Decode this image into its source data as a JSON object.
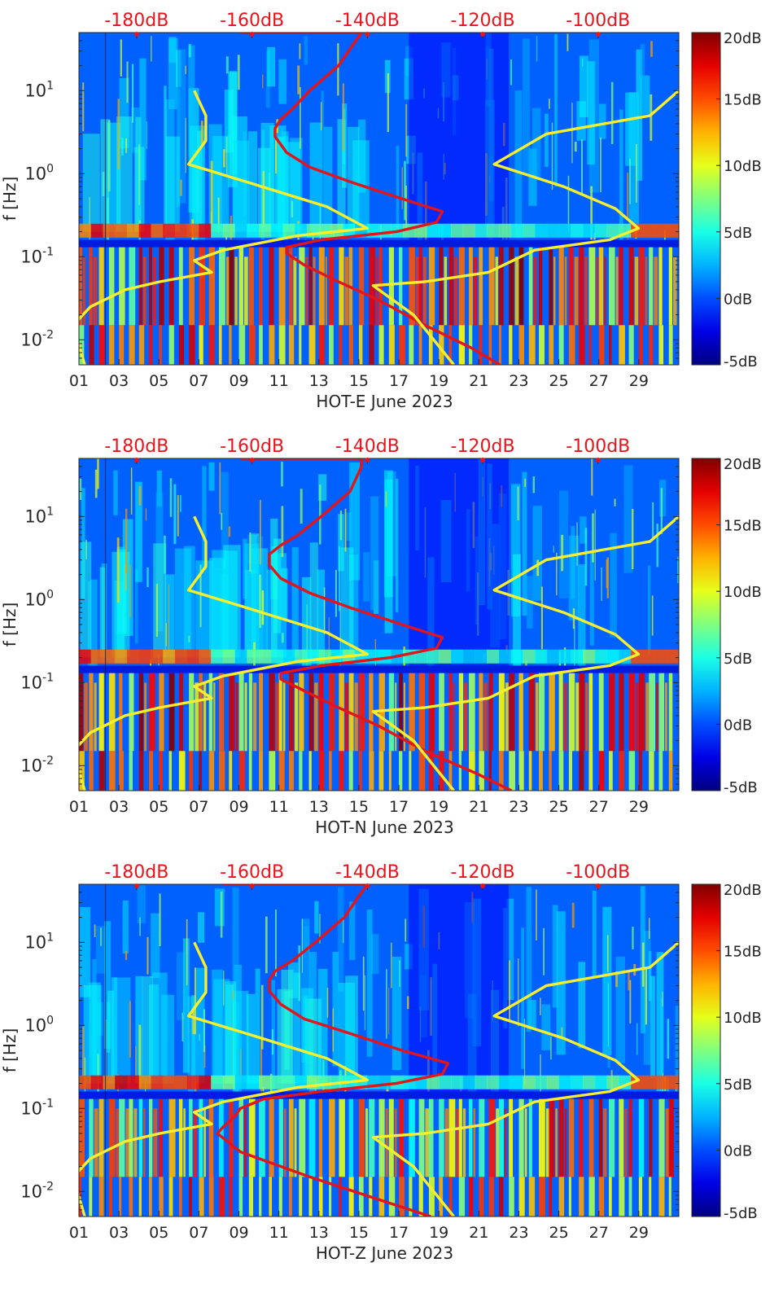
{
  "colors": {
    "top_axis_label": "#e8141c",
    "red_curve": "#e3141a",
    "yellow_curve": "#f7ef2d",
    "colormap": "jet"
  },
  "chart_data": [
    {
      "type": "heatmap",
      "title": "",
      "xlabel": "HOT-E June 2023",
      "ylabel": "f [Hz]",
      "x_ticks": [
        "01",
        "03",
        "05",
        "07",
        "09",
        "11",
        "13",
        "15",
        "17",
        "19",
        "21",
        "23",
        "25",
        "27",
        "29"
      ],
      "y_ticks": [
        {
          "value": 0.01,
          "base": "10",
          "exp": "-2"
        },
        {
          "value": 0.1,
          "base": "10",
          "exp": "-1"
        },
        {
          "value": 1,
          "base": "10",
          "exp": "0"
        },
        {
          "value": 10,
          "base": "10",
          "exp": "1"
        }
      ],
      "y_scale": "log",
      "ylim": [
        0.005,
        50
      ],
      "xlim": [
        1,
        31
      ],
      "top_axis_ticks": [
        "-180dB",
        "-160dB",
        "-140dB",
        "-120dB",
        "-100dB"
      ],
      "top_axis_range": [
        -190,
        -86
      ],
      "colorbar": {
        "ticks": [
          "20dB",
          "15dB",
          "10dB",
          "5dB",
          "0dB",
          "-5dB"
        ],
        "range": [
          -5,
          20
        ],
        "colormap": "jet"
      },
      "series": [
        {
          "color": "#e3141a",
          "points": [
            [
              -162,
              50
            ],
            [
              -150,
              50
            ],
            [
              -141,
              50
            ],
            [
              -142,
              40
            ],
            [
              -145,
              20
            ],
            [
              -150,
              10
            ],
            [
              -153,
              6
            ],
            [
              -155,
              4.5
            ],
            [
              -156,
              3.5
            ],
            [
              -156,
              2.8
            ],
            [
              -154,
              1.8
            ],
            [
              -150,
              1.2
            ],
            [
              -143,
              0.8
            ],
            [
              -134,
              0.5
            ],
            [
              -127,
              0.35
            ],
            [
              -128,
              0.26
            ],
            [
              -135,
              0.2
            ],
            [
              -148,
              0.16
            ],
            [
              -154,
              0.13
            ],
            [
              -154,
              0.11
            ],
            [
              -151,
              0.08
            ],
            [
              -145,
              0.05
            ],
            [
              -138,
              0.03
            ],
            [
              -130,
              0.015
            ],
            [
              -122,
              0.008
            ],
            [
              -117,
              0.005
            ]
          ]
        },
        {
          "color": "#f7ef2d",
          "points": [
            [
              -170,
              10
            ],
            [
              -168,
              5
            ],
            [
              -168,
              2.5
            ],
            [
              -171,
              1.3
            ],
            [
              -161,
              0.8
            ],
            [
              -147,
              0.4
            ],
            [
              -140,
              0.22
            ],
            [
              -152,
              0.18
            ],
            [
              -165,
              0.12
            ],
            [
              -170,
              0.09
            ],
            [
              -167,
              0.065
            ],
            [
              -176,
              0.05
            ],
            [
              -182,
              0.04
            ],
            [
              -188,
              0.025
            ],
            [
              -191,
              0.015
            ],
            [
              -189,
              0.005
            ]
          ]
        },
        {
          "color": "#f7ef2d",
          "points": [
            [
              -86,
              10
            ],
            [
              -91,
              5
            ],
            [
              -109,
              3
            ],
            [
              -118,
              1.3
            ],
            [
              -106,
              0.7
            ],
            [
              -97,
              0.38
            ],
            [
              -93,
              0.22
            ],
            [
              -98,
              0.16
            ],
            [
              -111,
              0.12
            ],
            [
              -119,
              0.065
            ],
            [
              -130,
              0.05
            ],
            [
              -139,
              0.045
            ],
            [
              -132,
              0.02
            ],
            [
              -125,
              0.005
            ]
          ]
        }
      ]
    },
    {
      "type": "heatmap",
      "title": "",
      "xlabel": "HOT-N June 2023",
      "ylabel": "f [Hz]",
      "x_ticks": [
        "01",
        "03",
        "05",
        "07",
        "09",
        "11",
        "13",
        "15",
        "17",
        "19",
        "21",
        "23",
        "25",
        "27",
        "29"
      ],
      "y_ticks": [
        {
          "value": 0.01,
          "base": "10",
          "exp": "-2"
        },
        {
          "value": 0.1,
          "base": "10",
          "exp": "-1"
        },
        {
          "value": 1,
          "base": "10",
          "exp": "0"
        },
        {
          "value": 10,
          "base": "10",
          "exp": "1"
        }
      ],
      "y_scale": "log",
      "ylim": [
        0.005,
        50
      ],
      "xlim": [
        1,
        31
      ],
      "top_axis_ticks": [
        "-180dB",
        "-160dB",
        "-140dB",
        "-120dB",
        "-100dB"
      ],
      "top_axis_range": [
        -190,
        -86
      ],
      "colorbar": {
        "ticks": [
          "20dB",
          "15dB",
          "10dB",
          "5dB",
          "0dB",
          "-5dB"
        ],
        "range": [
          -5,
          20
        ],
        "colormap": "jet"
      },
      "series": [
        {
          "color": "#e3141a",
          "points": [
            [
              -162,
              50
            ],
            [
              -150,
              50
            ],
            [
              -141,
              50
            ],
            [
              -141,
              40
            ],
            [
              -143,
              20
            ],
            [
              -148,
              10
            ],
            [
              -152,
              6
            ],
            [
              -155,
              4.5
            ],
            [
              -157,
              3.5
            ],
            [
              -157,
              2.6
            ],
            [
              -155,
              1.8
            ],
            [
              -150,
              1.2
            ],
            [
              -143,
              0.8
            ],
            [
              -134,
              0.5
            ],
            [
              -127,
              0.35
            ],
            [
              -128,
              0.26
            ],
            [
              -136,
              0.2
            ],
            [
              -148,
              0.16
            ],
            [
              -155,
              0.13
            ],
            [
              -155,
              0.11
            ],
            [
              -151,
              0.08
            ],
            [
              -145,
              0.05
            ],
            [
              -138,
              0.03
            ],
            [
              -130,
              0.015
            ],
            [
              -121,
              0.008
            ],
            [
              -115,
              0.005
            ]
          ]
        },
        {
          "color": "#f7ef2d",
          "points": [
            [
              -170,
              10
            ],
            [
              -168,
              5
            ],
            [
              -168,
              2.5
            ],
            [
              -171,
              1.3
            ],
            [
              -161,
              0.8
            ],
            [
              -147,
              0.4
            ],
            [
              -140,
              0.22
            ],
            [
              -152,
              0.18
            ],
            [
              -165,
              0.12
            ],
            [
              -170,
              0.09
            ],
            [
              -167,
              0.065
            ],
            [
              -176,
              0.05
            ],
            [
              -182,
              0.04
            ],
            [
              -188,
              0.025
            ],
            [
              -191,
              0.015
            ],
            [
              -189,
              0.005
            ]
          ]
        },
        {
          "color": "#f7ef2d",
          "points": [
            [
              -86,
              10
            ],
            [
              -91,
              5
            ],
            [
              -109,
              3
            ],
            [
              -118,
              1.3
            ],
            [
              -106,
              0.7
            ],
            [
              -97,
              0.38
            ],
            [
              -93,
              0.22
            ],
            [
              -98,
              0.16
            ],
            [
              -111,
              0.12
            ],
            [
              -119,
              0.065
            ],
            [
              -130,
              0.05
            ],
            [
              -139,
              0.045
            ],
            [
              -132,
              0.02
            ],
            [
              -125,
              0.005
            ]
          ]
        }
      ]
    },
    {
      "type": "heatmap",
      "title": "",
      "xlabel": "HOT-Z June 2023",
      "ylabel": "f [Hz]",
      "x_ticks": [
        "01",
        "03",
        "05",
        "07",
        "09",
        "11",
        "13",
        "15",
        "17",
        "19",
        "21",
        "23",
        "25",
        "27",
        "29"
      ],
      "y_ticks": [
        {
          "value": 0.01,
          "base": "10",
          "exp": "-2"
        },
        {
          "value": 0.1,
          "base": "10",
          "exp": "-1"
        },
        {
          "value": 1,
          "base": "10",
          "exp": "0"
        },
        {
          "value": 10,
          "base": "10",
          "exp": "1"
        }
      ],
      "y_scale": "log",
      "ylim": [
        0.005,
        50
      ],
      "xlim": [
        1,
        31
      ],
      "top_axis_ticks": [
        "-180dB",
        "-160dB",
        "-140dB",
        "-120dB",
        "-100dB"
      ],
      "top_axis_range": [
        -190,
        -86
      ],
      "colorbar": {
        "ticks": [
          "20dB",
          "15dB",
          "10dB",
          "5dB",
          "0dB",
          "-5dB"
        ],
        "range": [
          -5,
          20
        ],
        "colormap": "jet"
      },
      "series": [
        {
          "color": "#e3141a",
          "points": [
            [
              -165,
              50
            ],
            [
              -152,
              50
            ],
            [
              -140,
              50
            ],
            [
              -141,
              40
            ],
            [
              -144,
              20
            ],
            [
              -149,
              10
            ],
            [
              -153,
              6
            ],
            [
              -156,
              4.5
            ],
            [
              -157,
              3.5
            ],
            [
              -157,
              2.6
            ],
            [
              -155,
              1.8
            ],
            [
              -151,
              1.2
            ],
            [
              -143,
              0.8
            ],
            [
              -134,
              0.5
            ],
            [
              -126,
              0.35
            ],
            [
              -127,
              0.26
            ],
            [
              -135,
              0.2
            ],
            [
              -148,
              0.16
            ],
            [
              -158,
              0.13
            ],
            [
              -162,
              0.1
            ],
            [
              -163,
              0.08
            ],
            [
              -165,
              0.06
            ],
            [
              -166,
              0.05
            ],
            [
              -162,
              0.03
            ],
            [
              -150,
              0.015
            ],
            [
              -138,
              0.008
            ],
            [
              -129,
              0.005
            ]
          ]
        },
        {
          "color": "#f7ef2d",
          "points": [
            [
              -170,
              10
            ],
            [
              -168,
              5
            ],
            [
              -168,
              2.5
            ],
            [
              -171,
              1.3
            ],
            [
              -161,
              0.8
            ],
            [
              -147,
              0.4
            ],
            [
              -140,
              0.22
            ],
            [
              -152,
              0.18
            ],
            [
              -165,
              0.12
            ],
            [
              -170,
              0.09
            ],
            [
              -167,
              0.065
            ],
            [
              -176,
              0.05
            ],
            [
              -182,
              0.04
            ],
            [
              -188,
              0.025
            ],
            [
              -191,
              0.015
            ],
            [
              -189,
              0.005
            ]
          ]
        },
        {
          "color": "#f7ef2d",
          "points": [
            [
              -86,
              10
            ],
            [
              -91,
              5
            ],
            [
              -109,
              3
            ],
            [
              -118,
              1.3
            ],
            [
              -106,
              0.7
            ],
            [
              -97,
              0.38
            ],
            [
              -93,
              0.22
            ],
            [
              -98,
              0.16
            ],
            [
              -111,
              0.12
            ],
            [
              -119,
              0.065
            ],
            [
              -130,
              0.05
            ],
            [
              -139,
              0.045
            ],
            [
              -132,
              0.02
            ],
            [
              -125,
              0.005
            ]
          ]
        }
      ]
    }
  ]
}
